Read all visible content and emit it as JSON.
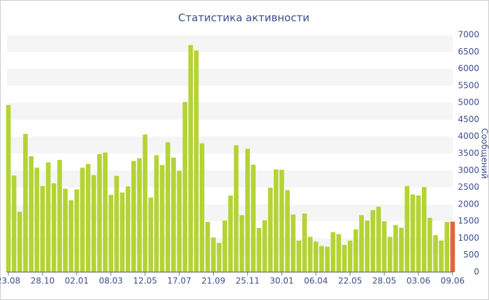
{
  "chart_data": {
    "type": "bar",
    "title": "Статистика активности",
    "y_label": "Сообщений",
    "categories": [
      "23.08",
      null,
      null,
      null,
      null,
      null,
      "28.10",
      null,
      null,
      null,
      null,
      null,
      "02.01",
      null,
      null,
      null,
      null,
      null,
      "08.03",
      null,
      null,
      null,
      null,
      null,
      "12.05",
      null,
      null,
      null,
      null,
      null,
      "17.07",
      null,
      null,
      null,
      null,
      null,
      "21.09",
      null,
      null,
      null,
      null,
      null,
      "25.11",
      null,
      null,
      null,
      null,
      null,
      "30.01",
      null,
      null,
      null,
      null,
      null,
      "06.04",
      null,
      null,
      null,
      null,
      null,
      "22.05",
      null,
      null,
      null,
      null,
      null,
      "28.05",
      null,
      null,
      null,
      null,
      null,
      "03.06",
      null,
      null,
      null,
      null,
      null,
      "09.06"
    ],
    "values": [
      4930,
      2850,
      1780,
      4080,
      3420,
      3080,
      2540,
      3240,
      2620,
      3310,
      2460,
      2120,
      2440,
      3080,
      3190,
      2860,
      3480,
      3530,
      2280,
      2840,
      2350,
      2530,
      3280,
      3360,
      4060,
      2200,
      3450,
      3160,
      3830,
      3380,
      2990,
      5020,
      6700,
      6540,
      3800,
      1480,
      1020,
      860,
      1520,
      2260,
      3740,
      1680,
      3640,
      3170,
      1300,
      1530,
      2490,
      3030,
      3020,
      2420,
      1700,
      930,
      1730,
      1040,
      900,
      770,
      750,
      1180,
      1120,
      800,
      930,
      1260,
      1680,
      1520,
      1830,
      1930,
      1500,
      1040,
      1390,
      1310,
      2540,
      2290,
      2260,
      2510,
      1600,
      1090,
      930,
      1480,
      1490
    ],
    "color": "#b5d334",
    "highlight": {
      "index": 78,
      "color": "#e4643c"
    },
    "ylim": [
      0,
      7000
    ],
    "yticks": [
      0,
      500,
      1000,
      1500,
      2000,
      2500,
      3000,
      3500,
      4000,
      4500,
      5000,
      5500,
      6000,
      6500,
      7000
    ],
    "grid": true
  }
}
